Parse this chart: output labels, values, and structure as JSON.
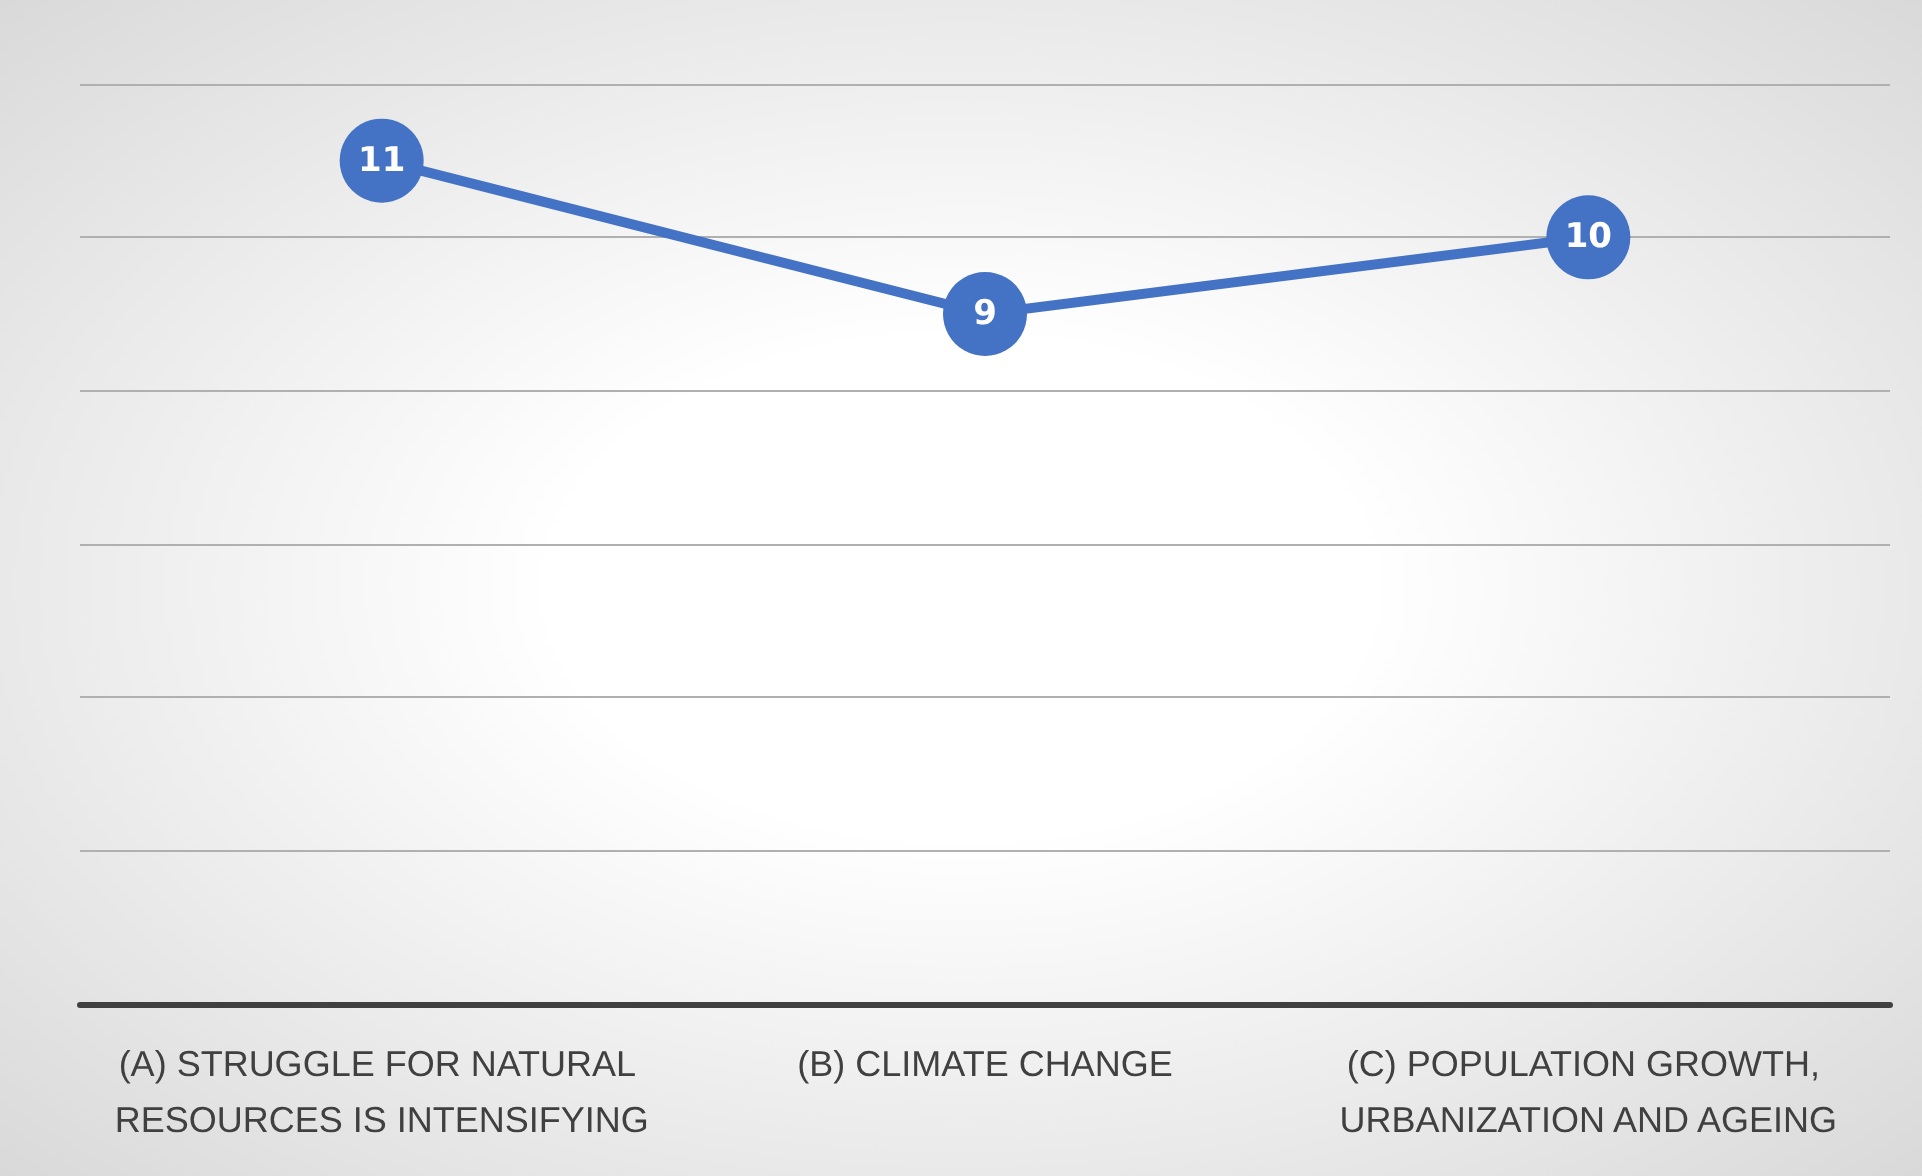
{
  "chart_data": {
    "type": "line",
    "categories": [
      "(A) STRUGGLE FOR NATURAL RESOURCES IS INTENSIFYING",
      "(B) CLIMATE CHANGE",
      "(C) POPULATION GROWTH, URBANIZATION AND AGEING"
    ],
    "series": [
      {
        "color": "#4472c4",
        "values": [
          11,
          9,
          10
        ]
      }
    ],
    "ylim": [
      0,
      12
    ],
    "yticks": [
      {
        "value": 0,
        "label": null
      },
      {
        "value": 2,
        "label": null
      },
      {
        "value": 4,
        "label": null
      },
      {
        "value": 6,
        "label": null
      },
      {
        "value": 8,
        "label": null
      },
      {
        "value": 10,
        "label": null
      },
      {
        "value": 12,
        "label": null
      }
    ],
    "tick_labels": "x",
    "grid": "y",
    "marker": "circle",
    "line_style": "solid",
    "data_labels": true
  }
}
